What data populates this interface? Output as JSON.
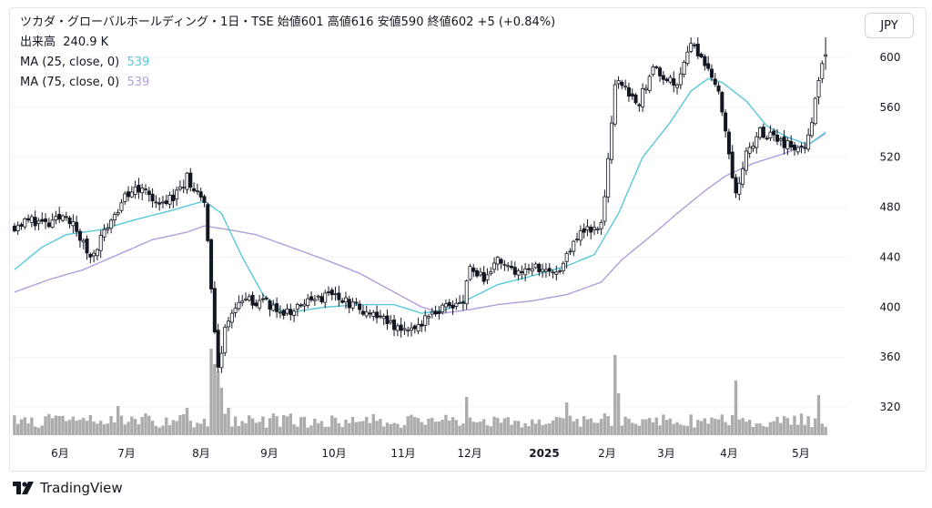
{
  "header": {
    "title_line": "ツカダ・グローバルホールディング・1日・TSE  始値601  高値616  安値590  終値602  +5 (+0.84%)",
    "volume_label": "出来高",
    "volume_value": "240.9 K",
    "ma25_label": "MA (25, close, 0)",
    "ma25_value": "539",
    "ma75_label": "MA (75, close, 0)",
    "ma75_value": "539"
  },
  "currency_button": "JPY",
  "brand": "TradingView",
  "colors": {
    "up": "#ffffff",
    "down": "#131722",
    "ma25": "#5ac8d8",
    "ma75": "#b39ddb",
    "volume": "#9e9e9e"
  },
  "chart_data": {
    "type": "candlestick",
    "title": "ツカダ・グローバルホールディング・1日・TSE",
    "ylim": [
      296,
      624
    ],
    "y_ticks": [
      320,
      360,
      400,
      440,
      480,
      520,
      560,
      600
    ],
    "x_tick_labels": [
      "6月",
      "7月",
      "8月",
      "9月",
      "10月",
      "11月",
      "12月",
      "2025",
      "2月",
      "3月",
      "4月",
      "5月"
    ],
    "anchors": [
      [
        0,
        465
      ],
      [
        5,
        470
      ],
      [
        10,
        465
      ],
      [
        15,
        475
      ],
      [
        20,
        450
      ],
      [
        22,
        440
      ],
      [
        27,
        465
      ],
      [
        32,
        488
      ],
      [
        37,
        498
      ],
      [
        42,
        482
      ],
      [
        47,
        490
      ],
      [
        50,
        505
      ],
      [
        55,
        480
      ],
      [
        56,
        452
      ],
      [
        57,
        412
      ],
      [
        59,
        350
      ],
      [
        61,
        382
      ],
      [
        65,
        405
      ],
      [
        72,
        405
      ],
      [
        78,
        395
      ],
      [
        84,
        402
      ],
      [
        92,
        410
      ],
      [
        100,
        398
      ],
      [
        108,
        388
      ],
      [
        112,
        383
      ],
      [
        116,
        385
      ],
      [
        122,
        395
      ],
      [
        126,
        402
      ],
      [
        130,
        405
      ],
      [
        132,
        433
      ],
      [
        136,
        423
      ],
      [
        140,
        438
      ],
      [
        146,
        428
      ],
      [
        152,
        432
      ],
      [
        158,
        428
      ],
      [
        164,
        462
      ],
      [
        170,
        465
      ],
      [
        172,
        515
      ],
      [
        174,
        580
      ],
      [
        177,
        575
      ],
      [
        181,
        565
      ],
      [
        185,
        590
      ],
      [
        192,
        578
      ],
      [
        196,
        614
      ],
      [
        200,
        595
      ],
      [
        204,
        570
      ],
      [
        206,
        545
      ],
      [
        209,
        488
      ],
      [
        212,
        525
      ],
      [
        216,
        540
      ],
      [
        220,
        535
      ],
      [
        225,
        528
      ],
      [
        229,
        530
      ],
      [
        231,
        550
      ],
      [
        233,
        582
      ],
      [
        235,
        602
      ]
    ],
    "ma25": [
      [
        0,
        430
      ],
      [
        8,
        448
      ],
      [
        15,
        458
      ],
      [
        25,
        462
      ],
      [
        35,
        470
      ],
      [
        45,
        477
      ],
      [
        55,
        485
      ],
      [
        60,
        475
      ],
      [
        66,
        440
      ],
      [
        72,
        410
      ],
      [
        78,
        395
      ],
      [
        90,
        400
      ],
      [
        100,
        402
      ],
      [
        110,
        402
      ],
      [
        118,
        395
      ],
      [
        125,
        398
      ],
      [
        132,
        407
      ],
      [
        140,
        418
      ],
      [
        150,
        425
      ],
      [
        160,
        433
      ],
      [
        168,
        442
      ],
      [
        175,
        475
      ],
      [
        182,
        520
      ],
      [
        190,
        548
      ],
      [
        196,
        573
      ],
      [
        201,
        583
      ],
      [
        205,
        580
      ],
      [
        212,
        565
      ],
      [
        218,
        545
      ],
      [
        224,
        536
      ],
      [
        230,
        530
      ],
      [
        235,
        540
      ]
    ],
    "ma75": [
      [
        0,
        412
      ],
      [
        10,
        422
      ],
      [
        20,
        430
      ],
      [
        30,
        442
      ],
      [
        40,
        454
      ],
      [
        50,
        460
      ],
      [
        55,
        465
      ],
      [
        62,
        462
      ],
      [
        70,
        458
      ],
      [
        80,
        448
      ],
      [
        90,
        438
      ],
      [
        100,
        427
      ],
      [
        110,
        412
      ],
      [
        118,
        400
      ],
      [
        124,
        395
      ],
      [
        132,
        398
      ],
      [
        140,
        402
      ],
      [
        150,
        405
      ],
      [
        160,
        410
      ],
      [
        170,
        420
      ],
      [
        176,
        438
      ],
      [
        184,
        456
      ],
      [
        192,
        475
      ],
      [
        200,
        493
      ],
      [
        206,
        505
      ],
      [
        214,
        515
      ],
      [
        222,
        522
      ],
      [
        230,
        530
      ],
      [
        235,
        539
      ]
    ],
    "last": {
      "open": 601,
      "high": 616,
      "low": 590,
      "close": 602,
      "change": "+5 (+0.84%)"
    }
  }
}
